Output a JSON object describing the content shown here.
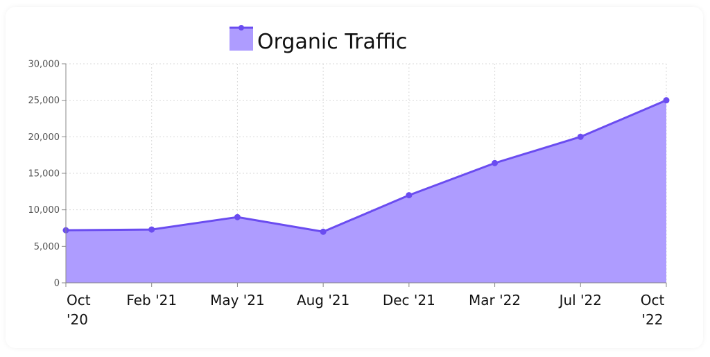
{
  "chart_data": {
    "type": "area",
    "categories": [
      "Oct '20",
      "Feb '21",
      "May '21",
      "Aug '21",
      "Dec '21",
      "Mar '22",
      "Jul '22",
      "Oct '22"
    ],
    "series": [
      {
        "name": "Organic Traffic",
        "values": [
          7200,
          7300,
          9000,
          7000,
          12000,
          16400,
          20000,
          25000
        ]
      }
    ],
    "ylim": [
      0,
      30000
    ],
    "yticks": [
      0,
      5000,
      10000,
      15000,
      20000,
      25000,
      30000
    ],
    "ytick_labels": [
      "0",
      "5,000",
      "10,000",
      "15,000",
      "20,000",
      "25,000",
      "30,000"
    ],
    "xtick_labels": [
      [
        "Oct",
        "'20"
      ],
      [
        "Feb '21"
      ],
      [
        "May '21"
      ],
      [
        "Aug '21"
      ],
      [
        "Dec '21"
      ],
      [
        "Mar '22"
      ],
      [
        "Jul '22"
      ],
      [
        "Oct",
        "'22"
      ]
    ],
    "grid": true,
    "legend_position": "top-center",
    "colors": {
      "line": "#6a4cf0",
      "fill": "#ae9cff",
      "grid": "#d9d9d9",
      "axis": "#888888"
    }
  }
}
